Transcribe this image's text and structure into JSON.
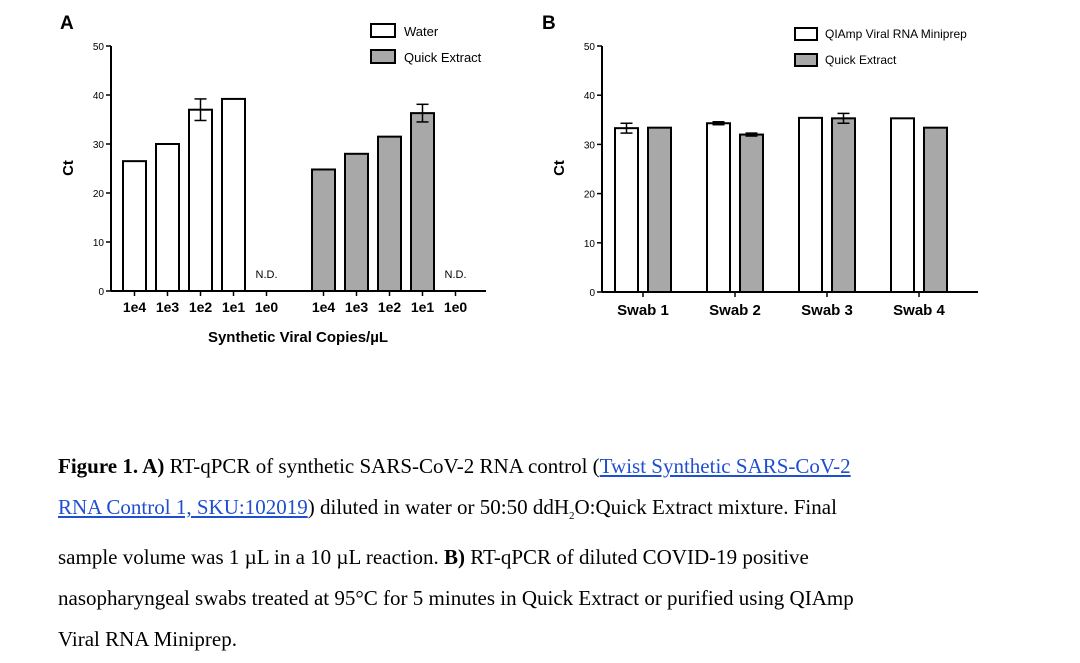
{
  "colors": {
    "white_fill": "#ffffff",
    "gray_fill": "#a8a8a8",
    "stroke": "#000000",
    "link": "#1f4fd1"
  },
  "chart_data": [
    {
      "type": "bar",
      "panel_label": "A",
      "ylabel": "Ct",
      "xlabel": "Synthetic Viral Copies/µL",
      "ylim": [
        0,
        50
      ],
      "yticks": [
        "0",
        "10",
        "20",
        "30",
        "40",
        "50"
      ],
      "groups": [
        {
          "name": "Water",
          "categories": [
            "1e4",
            "1e3",
            "1e2",
            "1e1",
            "1e0"
          ],
          "values": [
            26.5,
            30.0,
            37.0,
            39.2,
            null
          ],
          "errors": [
            0,
            0,
            2.2,
            0,
            0
          ],
          "nd_label": "N.D."
        },
        {
          "name": "Quick Extract",
          "categories": [
            "1e4",
            "1e3",
            "1e2",
            "1e1",
            "1e0"
          ],
          "values": [
            24.8,
            28.0,
            31.5,
            36.3,
            null
          ],
          "errors": [
            0,
            0,
            0,
            1.8,
            0
          ],
          "nd_label": "N.D."
        }
      ],
      "legend": [
        "Water",
        "Quick Extract"
      ]
    },
    {
      "type": "bar",
      "panel_label": "B",
      "ylabel": "Ct",
      "xlabel": "",
      "ylim": [
        0,
        50
      ],
      "yticks": [
        "0",
        "10",
        "20",
        "30",
        "40",
        "50"
      ],
      "categories": [
        "Swab 1",
        "Swab 2",
        "Swab 3",
        "Swab 4"
      ],
      "series": [
        {
          "name": "QIAmp Viral RNA Miniprep",
          "values": [
            33.3,
            34.3,
            35.4,
            35.3
          ],
          "errors": [
            1.0,
            0.3,
            0,
            0
          ]
        },
        {
          "name": "Quick Extract",
          "values": [
            33.4,
            32.0,
            35.3,
            33.4
          ],
          "errors": [
            0,
            0.3,
            1.0,
            0
          ]
        }
      ],
      "legend": [
        "QIAmp Viral RNA Miniprep",
        "Quick Extract"
      ]
    }
  ],
  "caption": {
    "label": "Figure 1. A)",
    "text1": " RT-qPCR of synthetic SARS-CoV-2 RNA control (",
    "link_part1": "Twist Synthetic SARS-CoV-2",
    "link_part2": "RNA Control 1, SKU:102019",
    "text2": ") diluted in water or 50:50 ddH",
    "sub2": "2",
    "text3": "O:Quick Extract mixture. Final",
    "text4": "sample volume was 1 µL in a 10 µL reaction. ",
    "label_b": "B)",
    "text5": " RT-qPCR of diluted COVID-19 positive",
    "text6": "nasopharyngeal swabs treated at 95°C for 5 minutes in Quick Extract or purified using QIAmp",
    "text7": "Viral RNA Miniprep."
  }
}
